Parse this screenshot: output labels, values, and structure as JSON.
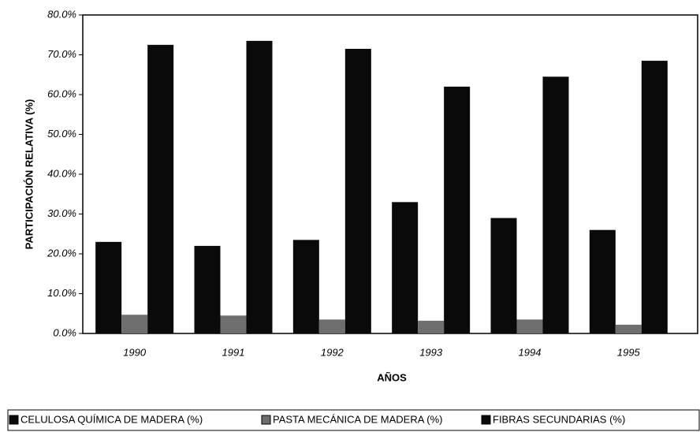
{
  "chart_data": {
    "type": "bar",
    "x_label": "AÑOS",
    "y_label": "PARTICIPACIÓN RELATIVA (%)",
    "categories": [
      "1990",
      "1991",
      "1992",
      "1993",
      "1994",
      "1995"
    ],
    "series": [
      {
        "name": "CELULOSA QUÍMICA DE MADERA (%)",
        "color": "#0a0a0a",
        "values": [
          23,
          22,
          23.5,
          33,
          29,
          26
        ]
      },
      {
        "name": "PASTA MECÁNICA DE MADERA (%)",
        "color": "#6e6e6e",
        "values": [
          4.7,
          4.5,
          3.5,
          3.2,
          3.5,
          2.2
        ]
      },
      {
        "name": "FIBRAS SECUNDARIAS (%)",
        "color": "#0a0a0a",
        "values": [
          72.5,
          73.5,
          71.5,
          62,
          64.5,
          68.5
        ]
      }
    ],
    "ylim": [
      0,
      80
    ],
    "yticks": [
      {
        "value": 0,
        "label": "0.0%"
      },
      {
        "value": 10,
        "label": "10.0%"
      },
      {
        "value": 20,
        "label": "20.0%"
      },
      {
        "value": 30,
        "label": "30.0%"
      },
      {
        "value": 40,
        "label": "40.0%"
      },
      {
        "value": 50,
        "label": "50.0%"
      },
      {
        "value": 60,
        "label": "60.0%"
      },
      {
        "value": 70,
        "label": "70.0%"
      },
      {
        "value": 80,
        "label": "80.0%"
      }
    ],
    "grid": false,
    "legend": "bottom"
  }
}
